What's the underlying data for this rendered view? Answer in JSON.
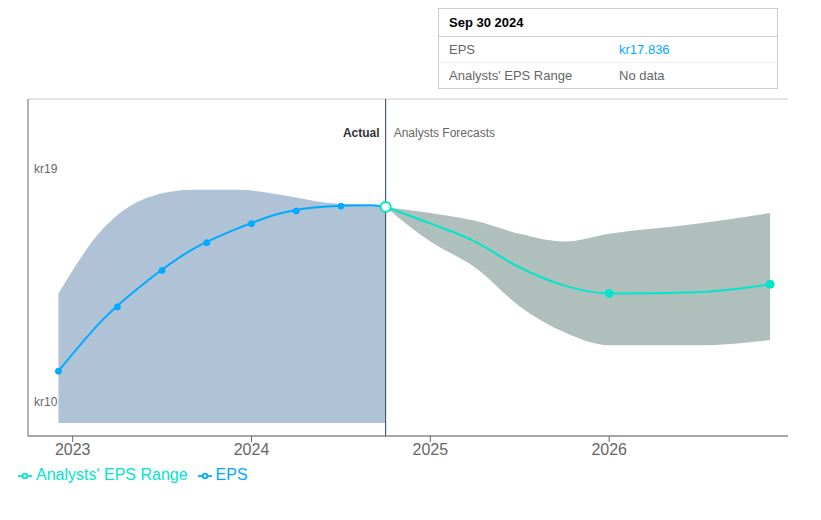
{
  "chart_data": {
    "type": "line",
    "xlim": [
      2022.75,
      2027.0
    ],
    "ylim": [
      9.0,
      22.0
    ],
    "xticks": [
      2023,
      2024,
      2025,
      2026
    ],
    "yticks": [
      10,
      13,
      16,
      19
    ],
    "grid": true,
    "tick_labels": "x",
    "legend": "bottom",
    "series": [
      {
        "name": "EPS",
        "color": "#00aaff",
        "x": [
          2022.92,
          2023.17,
          2023.42,
          2023.67,
          2023.92,
          2024.17,
          2024.42,
          2024.67,
          2024.75
        ],
        "values": [
          11.5,
          13.5,
          15.0,
          16.2,
          17.0,
          17.6,
          17.85,
          17.9,
          17.836
        ],
        "markers": {
          "x": [
            2022.92,
            2023.25,
            2023.5,
            2023.75,
            2024.0,
            2024.25,
            2024.5
          ],
          "values": [
            11.5,
            13.98,
            15.384,
            16.456,
            17.192,
            17.68,
            17.866
          ]
        }
      },
      {
        "name": "Analysts' EPS Range",
        "color": "#00e5cc",
        "x": [
          2024.75,
          2025.0,
          2025.25,
          2025.5,
          2025.75,
          2026.0,
          2026.5,
          2026.9
        ],
        "values": [
          17.836,
          17.2,
          16.5,
          15.5,
          14.8,
          14.5,
          14.55,
          14.85
        ],
        "markers": {
          "x": [
            2026.0,
            2026.9
          ],
          "values": [
            14.5,
            14.85
          ]
        }
      }
    ],
    "bands": [
      {
        "color": "#1c4f8a",
        "x": [
          2022.92,
          2023.17,
          2023.42,
          2023.67,
          2023.92,
          2024.17,
          2024.42,
          2024.67,
          2024.75
        ],
        "lower": [
          9.5,
          9.5,
          9.5,
          9.5,
          9.5,
          9.5,
          9.5,
          9.5,
          9.5
        ],
        "upper": [
          14.5,
          17.0,
          18.2,
          18.5,
          18.5,
          18.3,
          18.0,
          17.9,
          17.836
        ]
      },
      {
        "color": "#1a4a40",
        "x": [
          2024.75,
          2025.0,
          2025.25,
          2025.5,
          2025.75,
          2026.0,
          2026.5,
          2026.9
        ],
        "lower": [
          17.836,
          16.5,
          15.5,
          14.0,
          13.0,
          12.5,
          12.5,
          12.7
        ],
        "upper": [
          17.836,
          17.6,
          17.3,
          16.8,
          16.5,
          16.8,
          17.2,
          17.6
        ]
      }
    ],
    "divider": {
      "x": 2024.75,
      "color": "#2a4060",
      "label_y": 20.7,
      "left_label": "Actual",
      "right_label": "Analysts Forecasts"
    },
    "highlight": {
      "x": 2024.75,
      "y": 17.836
    },
    "level_labels": [
      {
        "text": "kr19",
        "y": 19
      },
      {
        "text": "kr10",
        "y": 10
      }
    ],
    "tooltip": {
      "title": "Sep 30 2024",
      "rows": [
        {
          "label": "EPS",
          "value": "kr17.836",
          "color": "#00aaff"
        },
        {
          "label": "Analysts' EPS Range",
          "value": "No data"
        }
      ]
    }
  }
}
